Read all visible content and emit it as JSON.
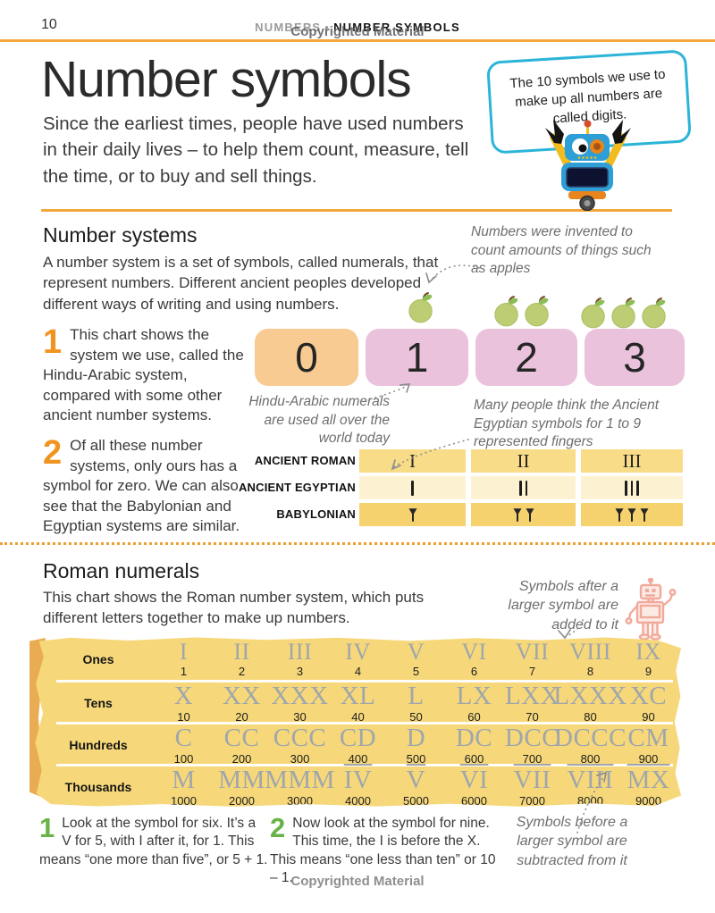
{
  "page": {
    "number": "10",
    "header": {
      "section": "NUMBERS",
      "separator": "•",
      "topic": "NUMBER SYMBOLS"
    },
    "watermark_top": "Copyrighted Material",
    "watermark_bottom": "Copyrighted Material",
    "title": "Number symbols",
    "intro": "Since the earliest times, people have used numbers in their daily lives – to help them count, measure, tell the time, or to buy and sell things."
  },
  "speech_bubble": {
    "text": "The 10 symbols we use to make up all numbers are called digits."
  },
  "number_systems": {
    "heading": "Number systems",
    "body": "A number system is a set of symbols, called numerals, that represent numbers. Different ancient peoples developed different ways of writing and using numbers.",
    "steps": [
      {
        "num": "1",
        "text": "This chart shows the system we use, called the Hindu-Arabic system, compared with some other ancient number systems."
      },
      {
        "num": "2",
        "text": "Of all these number systems, only ours has a symbol for zero. We can also see that the Babylonian and Egyptian systems are similar."
      }
    ],
    "annotations": {
      "apples": "Numbers were invented to count amounts of things such as apples",
      "hindu_arabic": "Hindu-Arabic numerals are used all over the world today",
      "egyptian": "Many people think the Ancient Egyptian symbols for 1 to 9 represented fingers"
    },
    "digits": [
      "0",
      "1",
      "2",
      "3"
    ],
    "apple_counts": [
      1,
      2,
      3
    ],
    "comparison_table": {
      "rows": [
        {
          "label": "ANCIENT ROMAN",
          "type": "roman",
          "values": [
            "I",
            "II",
            "III"
          ],
          "bg": "#F8DC87"
        },
        {
          "label": "ANCIENT EGYPTIAN",
          "type": "strokes",
          "values": [
            1,
            2,
            3
          ],
          "bg": "#FCF1D0"
        },
        {
          "label": "BABYLONIAN",
          "type": "wedges",
          "values": [
            1,
            2,
            3
          ],
          "bg": "#F5D26E"
        }
      ]
    }
  },
  "roman_numerals": {
    "heading": "Roman numerals",
    "body": "This chart shows the Roman number system, which puts different letters together to make up numbers.",
    "annotations": {
      "added": "Symbols after a larger symbol are added to it",
      "subtracted": "Symbols before a larger symbol are subtracted from it"
    },
    "chart": {
      "type": "table",
      "rows": [
        {
          "label": "Ones",
          "cells": [
            {
              "roman": "I",
              "value": "1"
            },
            {
              "roman": "II",
              "value": "2"
            },
            {
              "roman": "III",
              "value": "3"
            },
            {
              "roman": "IV",
              "value": "4"
            },
            {
              "roman": "V",
              "value": "5"
            },
            {
              "roman": "VI",
              "value": "6"
            },
            {
              "roman": "VII",
              "value": "7"
            },
            {
              "roman": "VIII",
              "value": "8"
            },
            {
              "roman": "IX",
              "value": "9"
            }
          ]
        },
        {
          "label": "Tens",
          "cells": [
            {
              "roman": "X",
              "value": "10"
            },
            {
              "roman": "XX",
              "value": "20"
            },
            {
              "roman": "XXX",
              "value": "30"
            },
            {
              "roman": "XL",
              "value": "40"
            },
            {
              "roman": "L",
              "value": "50"
            },
            {
              "roman": "LX",
              "value": "60"
            },
            {
              "roman": "LXX",
              "value": "70"
            },
            {
              "roman": "LXXX",
              "value": "80"
            },
            {
              "roman": "XC",
              "value": "90"
            }
          ]
        },
        {
          "label": "Hundreds",
          "cells": [
            {
              "roman": "C",
              "value": "100"
            },
            {
              "roman": "CC",
              "value": "200"
            },
            {
              "roman": "CCC",
              "value": "300"
            },
            {
              "roman": "CD",
              "value": "400"
            },
            {
              "roman": "D",
              "value": "500"
            },
            {
              "roman": "DC",
              "value": "600"
            },
            {
              "roman": "DCC",
              "value": "700"
            },
            {
              "roman": "DCCC",
              "value": "800"
            },
            {
              "roman": "CM",
              "value": "900"
            }
          ]
        },
        {
          "label": "Thousands",
          "cells": [
            {
              "roman": "M",
              "value": "1000"
            },
            {
              "roman": "MM",
              "value": "2000"
            },
            {
              "roman": "MMM",
              "value": "3000"
            },
            {
              "roman": "IV",
              "value": "4000",
              "overline": true
            },
            {
              "roman": "V",
              "value": "5000",
              "overline": true
            },
            {
              "roman": "VI",
              "value": "6000",
              "overline": true
            },
            {
              "roman": "VII",
              "value": "7000",
              "overline": true
            },
            {
              "roman": "VIII",
              "value": "8000",
              "overline": true
            },
            {
              "roman": "MX",
              "value": "9000",
              "overline": true
            }
          ]
        }
      ]
    },
    "steps": [
      {
        "num": "1",
        "text": "Look at the symbol for six. It’s a V for 5, with I after it, for 1. This means “one more than five”, or 5 + 1."
      },
      {
        "num": "2",
        "text": "Now look at the symbol for nine. This time, the I is before the X. This means “one less than ten” or 10 – 1."
      }
    ]
  },
  "colors": {
    "accent_orange": "#F2A63B",
    "step_orange": "#F0941E",
    "step_green": "#67B345",
    "bubble_border": "#2CB4D8",
    "digit_box_zero": "#F7CB92",
    "digit_box_pink": "#EBC2DC",
    "table_gold": "#F8DC87",
    "table_pale": "#FCF1D0",
    "table_dark_gold": "#F5D26E",
    "big_table_yellow": "#F6D87A",
    "roman_gray": "#9FA6AC"
  }
}
